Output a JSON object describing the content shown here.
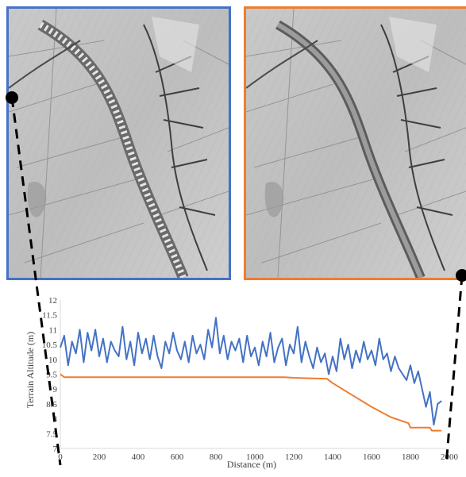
{
  "colors": {
    "before_border": "#4472c4",
    "after_border": "#ed7d31",
    "series_before": "#4472c4",
    "series_after": "#ed7d31",
    "axis": "#d9d9d9",
    "text": "#404040",
    "connector": "#000000"
  },
  "panels": [
    {
      "name": "hillshade-before",
      "description_icon": "terrain-hillshade-icon"
    },
    {
      "name": "hillshade-after",
      "description_icon": "terrain-hillshade-icon"
    }
  ],
  "chart_data": {
    "type": "line",
    "xlabel": "Distance (m)",
    "ylabel": "Terrain Altitude (m)",
    "xlim": [
      0,
      2000
    ],
    "ylim": [
      7,
      12
    ],
    "x_ticks": [
      "0",
      "200",
      "400",
      "600",
      "800",
      "1000",
      "1200",
      "1400",
      "1600",
      "1800",
      "2000"
    ],
    "y_ticks": [
      "7",
      "7.5",
      "8",
      "8.5",
      "9",
      "9.5",
      "10",
      "10.5",
      "11",
      "11.5",
      "12"
    ],
    "grid": false,
    "legend": "none",
    "series": [
      {
        "color": "#4472c4",
        "x": [
          0,
          20,
          40,
          60,
          80,
          100,
          120,
          140,
          160,
          180,
          200,
          220,
          240,
          260,
          280,
          300,
          320,
          340,
          360,
          380,
          400,
          420,
          440,
          460,
          480,
          500,
          520,
          540,
          560,
          580,
          600,
          620,
          640,
          660,
          680,
          700,
          720,
          740,
          760,
          780,
          800,
          820,
          840,
          860,
          880,
          900,
          920,
          940,
          960,
          980,
          1000,
          1020,
          1040,
          1060,
          1080,
          1100,
          1120,
          1140,
          1160,
          1180,
          1200,
          1220,
          1240,
          1260,
          1280,
          1300,
          1320,
          1340,
          1360,
          1380,
          1400,
          1420,
          1440,
          1460,
          1480,
          1500,
          1520,
          1540,
          1560,
          1580,
          1600,
          1620,
          1640,
          1660,
          1680,
          1700,
          1720,
          1740,
          1760,
          1780,
          1800,
          1820,
          1840,
          1860,
          1880,
          1900,
          1920,
          1940,
          1960
        ],
        "y": [
          10.4,
          10.8,
          9.8,
          10.6,
          10.2,
          11.0,
          9.9,
          10.9,
          10.3,
          11.0,
          10.1,
          10.7,
          9.9,
          10.6,
          10.3,
          10.1,
          11.1,
          10.0,
          10.6,
          9.8,
          10.9,
          10.2,
          10.7,
          10.0,
          10.8,
          10.1,
          9.7,
          10.6,
          10.2,
          10.9,
          10.3,
          10.0,
          10.6,
          9.9,
          10.8,
          10.2,
          10.5,
          10.0,
          11.0,
          10.4,
          11.4,
          10.2,
          10.8,
          10.0,
          10.6,
          10.3,
          10.7,
          9.9,
          10.8,
          10.1,
          10.4,
          9.8,
          10.6,
          10.1,
          10.9,
          9.9,
          10.4,
          10.7,
          9.8,
          10.5,
          10.2,
          11.1,
          9.9,
          10.6,
          10.1,
          9.7,
          10.4,
          9.9,
          10.2,
          9.5,
          10.1,
          9.6,
          10.7,
          10.0,
          10.5,
          9.7,
          10.3,
          9.9,
          10.6,
          10.0,
          10.3,
          9.8,
          10.7,
          10.0,
          10.2,
          9.6,
          10.1,
          9.7,
          9.5,
          9.3,
          9.8,
          9.2,
          9.6,
          9.0,
          8.4,
          8.9,
          7.8,
          8.5,
          8.6
        ]
      },
      {
        "color": "#ed7d31",
        "x": [
          0,
          20,
          100,
          300,
          500,
          700,
          900,
          1100,
          1150,
          1200,
          1300,
          1370,
          1380,
          1400,
          1500,
          1600,
          1700,
          1790,
          1800,
          1810,
          1900,
          1910,
          1930,
          1960
        ],
        "y": [
          9.5,
          9.4,
          9.4,
          9.4,
          9.4,
          9.4,
          9.4,
          9.4,
          9.4,
          9.38,
          9.36,
          9.35,
          9.3,
          9.2,
          8.8,
          8.4,
          8.05,
          7.85,
          7.7,
          7.7,
          7.7,
          7.6,
          7.6,
          7.6
        ]
      }
    ]
  }
}
